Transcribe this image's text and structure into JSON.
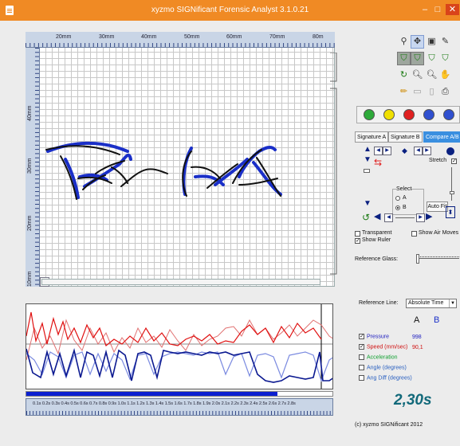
{
  "window": {
    "title": "xyzmo SIGNificant Forensic Analyst 3.1.0.21",
    "minimize": "–",
    "maximize": "□",
    "close": "✕"
  },
  "ruler": {
    "top_labels": [
      "20mm",
      "30mm",
      "40mm",
      "50mm",
      "60mm",
      "70mm",
      "80m"
    ],
    "left_labels": [
      "40mm",
      "30mm",
      "20mm",
      "10mm"
    ]
  },
  "tabs": [
    {
      "label": "Signature A",
      "active": false
    },
    {
      "label": "Signature B",
      "active": false
    },
    {
      "label": "Compare A/B",
      "active": true
    }
  ],
  "compare_controls": {
    "stretch_label": "Stretch",
    "select_label": "Select",
    "option_a": "A",
    "option_b": "B",
    "auto_fit": "Auto Fit"
  },
  "options": {
    "transparent": "Transparent",
    "show_air_moves": "Show Air Moves",
    "show_ruler": "Show Ruler",
    "reference_glass": "Reference Glass:"
  },
  "reference_line": {
    "label": "Reference Line:",
    "selected": "Absolute Time"
  },
  "columns": {
    "a": "A",
    "b": "B"
  },
  "parameters": [
    {
      "label": "Pressure",
      "checked": true,
      "color": "#2020c0",
      "value_a": "998",
      "value_b": ""
    },
    {
      "label": "Speed (mm/sec)",
      "checked": true,
      "color": "#d01010",
      "value_a": "90,1",
      "value_b": ""
    },
    {
      "label": "Acceleration",
      "checked": false,
      "color": "#10a030",
      "value_a": "",
      "value_b": ""
    },
    {
      "label": "Angle (degrees)",
      "checked": false,
      "color": "#2a60c0",
      "value_a": "",
      "value_b": ""
    },
    {
      "label": "Ang Diff (degrees)",
      "checked": false,
      "color": "#2a60c0",
      "value_a": "",
      "value_b": ""
    }
  ],
  "current_time": "2,30s",
  "timeline": {
    "labels": "0.1s 0.2s 0.3s 0.4s 0.5s 0.6s 0.7s 0.8s 0.9s 1.0s 1.1s 1.2s 1.3s 1.4s 1.5s 1.6s 1.7s 1.8s 1.9s 2.0s 2.1s 2.2s 2.3s 2.4s 2.5s 2.6s 2.7s 2.8s",
    "progress": 0.82
  },
  "copyright": "(c) xyzmo SIGNificant 2012",
  "colors": {
    "titlebar": "#f08a24",
    "accent_tab": "#3a8fe0",
    "sig_a": "#111111",
    "sig_b": "#1a2fc8"
  }
}
